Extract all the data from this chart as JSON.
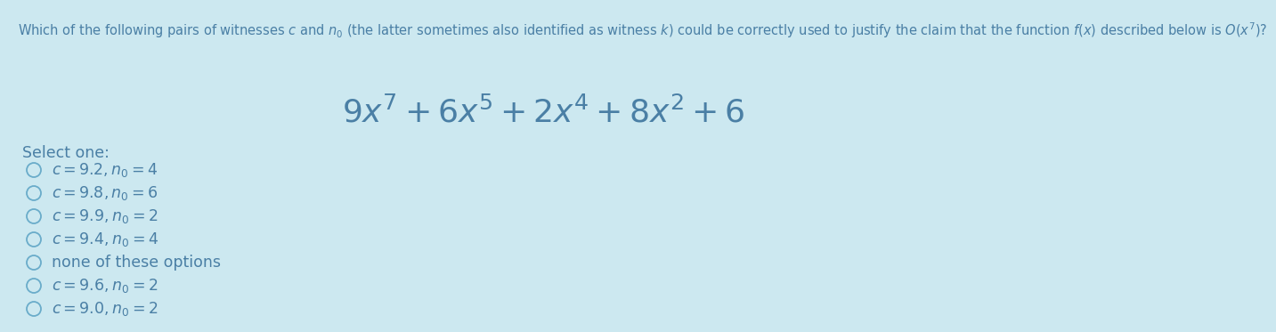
{
  "bg_color": "#cce8f0",
  "title_text": "Which of the following pairs of witnesses $c$ and $n_0$ (the latter sometimes also identified as witness $k$) could be correctly used to justify the claim that the function $f(x)$ described below is $O(x^7)$?",
  "formula": "$9x^7 + 6x^5 + 2x^4 + 8x^2 + 6$",
  "select_one": "Select one:",
  "options": [
    "$c = 9.2, n_0 = 4$",
    "$c = 9.8, n_0 = 6$",
    "$c = 9.9, n_0 = 2$",
    "$c = 9.4, n_0 = 4$",
    "none of these options",
    "$c = 9.6, n_0 = 2$",
    "$c = 9.0, n_0 = 2$"
  ],
  "text_color": "#4a7fa5",
  "circle_color": "#6aacca",
  "formula_fontsize": 26,
  "option_fontsize": 12.5,
  "title_fontsize": 10.5,
  "select_fontsize": 12.5
}
